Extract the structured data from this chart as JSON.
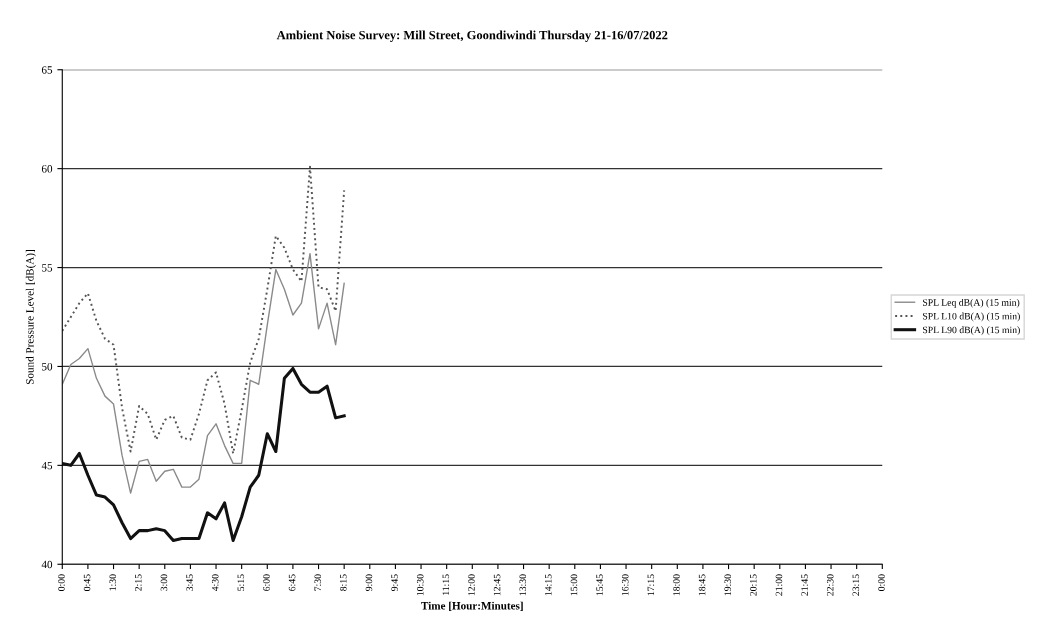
{
  "chart_data": {
    "type": "line",
    "title": "Ambient Noise Survey: Mill Street, Goondiwindi Thursday 21-16/07/2022",
    "xlabel": "Time [Hour:Minutes]",
    "ylabel": "Sound Pressure Level [dB(A)]",
    "x": [
      0,
      0.25,
      0.5,
      0.75,
      1,
      1.25,
      1.5,
      1.75,
      2,
      2.25,
      2.5,
      2.75,
      3,
      3.25,
      3.5,
      3.75,
      4,
      4.25,
      4.5,
      4.75,
      5,
      5.25,
      5.5,
      5.75,
      6,
      6.25,
      6.5,
      6.75,
      7,
      7.25,
      7.5,
      7.75,
      8,
      8.25
    ],
    "series": [
      {
        "name": "SPL Leq dB(A) (15 min)",
        "color": "#8a8a8a",
        "line_style": "solid",
        "values": [
          49.1,
          50.1,
          50.4,
          50.9,
          49.4,
          48.5,
          48.1,
          45.5,
          43.6,
          45.2,
          45.3,
          44.2,
          44.7,
          44.8,
          43.9,
          43.9,
          44.3,
          46.5,
          47.1,
          46.0,
          45.1,
          45.1,
          49.3,
          49.1,
          52.1,
          54.9,
          53.9,
          52.6,
          53.2,
          55.7,
          51.9,
          53.2,
          51.1,
          54.2
        ]
      },
      {
        "name": "SPL L10 dB(A) (15 min)",
        "color": "#555555",
        "line_style": "dotted",
        "values": [
          51.8,
          52.5,
          53.2,
          53.7,
          52.3,
          51.4,
          51.1,
          47.9,
          45.7,
          48.0,
          47.6,
          46.3,
          47.3,
          47.5,
          46.4,
          46.3,
          47.6,
          49.3,
          49.7,
          48.1,
          45.6,
          47.8,
          50.2,
          51.4,
          53.9,
          56.6,
          56.0,
          54.9,
          54.3,
          60.1,
          54.0,
          53.9,
          52.8,
          58.9
        ]
      },
      {
        "name": "SPL L90 dB(A) (15 min)",
        "color": "#111111",
        "line_style": "solid",
        "values": [
          45.1,
          45.0,
          45.6,
          44.5,
          43.5,
          43.4,
          43.0,
          42.1,
          41.3,
          41.7,
          41.7,
          41.8,
          41.7,
          41.2,
          41.3,
          41.3,
          41.3,
          42.6,
          42.3,
          43.1,
          41.2,
          42.4,
          43.9,
          44.5,
          46.6,
          45.7,
          49.4,
          49.9,
          49.1,
          48.7,
          48.7,
          49.0,
          47.4,
          47.5
        ]
      }
    ],
    "xlim": [
      0,
      24
    ],
    "xticks": [
      {
        "value": 0,
        "label": "0:00"
      },
      {
        "value": 0.75,
        "label": "0:45"
      },
      {
        "value": 1.5,
        "label": "1:30"
      },
      {
        "value": 2.25,
        "label": "2:15"
      },
      {
        "value": 3,
        "label": "3:00"
      },
      {
        "value": 3.75,
        "label": "3:45"
      },
      {
        "value": 4.5,
        "label": "4:30"
      },
      {
        "value": 5.25,
        "label": "5:15"
      },
      {
        "value": 6,
        "label": "6:00"
      },
      {
        "value": 6.75,
        "label": "6:45"
      },
      {
        "value": 7.5,
        "label": "7:30"
      },
      {
        "value": 8.25,
        "label": "8:15"
      },
      {
        "value": 9,
        "label": "9:00"
      },
      {
        "value": 9.75,
        "label": "9:45"
      },
      {
        "value": 10.5,
        "label": "10:30"
      },
      {
        "value": 11.25,
        "label": "11:15"
      },
      {
        "value": 12,
        "label": "12:00"
      },
      {
        "value": 12.75,
        "label": "12:45"
      },
      {
        "value": 13.5,
        "label": "13:30"
      },
      {
        "value": 14.25,
        "label": "14:15"
      },
      {
        "value": 15,
        "label": "15:00"
      },
      {
        "value": 15.75,
        "label": "15:45"
      },
      {
        "value": 16.5,
        "label": "16:30"
      },
      {
        "value": 17.25,
        "label": "17:15"
      },
      {
        "value": 18,
        "label": "18:00"
      },
      {
        "value": 18.75,
        "label": "18:45"
      },
      {
        "value": 19.5,
        "label": "19:30"
      },
      {
        "value": 20.25,
        "label": "20:15"
      },
      {
        "value": 21,
        "label": "21:00"
      },
      {
        "value": 21.75,
        "label": "21:45"
      },
      {
        "value": 22.5,
        "label": "22:30"
      },
      {
        "value": 23.25,
        "label": "23:15"
      },
      {
        "value": 24,
        "label": "0:00"
      }
    ],
    "ylim": [
      40,
      65
    ],
    "yticks": [
      40,
      45,
      50,
      55,
      60,
      65
    ],
    "grid": "y",
    "legend": "right",
    "marker": "none"
  }
}
